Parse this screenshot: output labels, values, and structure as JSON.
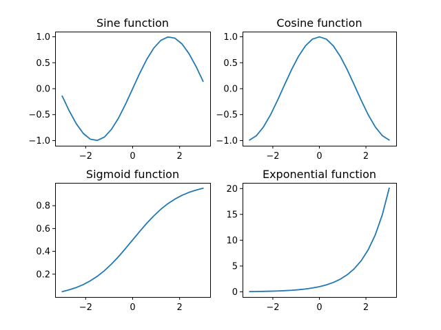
{
  "chart_data": [
    {
      "type": "line",
      "title": "Sine function",
      "xlabel": "",
      "ylabel": "",
      "xlim": [
        -3.3,
        3.3
      ],
      "ylim": [
        -1.1,
        1.1
      ],
      "xticks": [
        -2,
        0,
        2
      ],
      "xtick_labels": [
        "−2",
        "0",
        "2"
      ],
      "yticks": [
        -1.0,
        -0.5,
        0.0,
        0.5,
        1.0
      ],
      "ytick_labels": [
        "−1.0",
        "−0.5",
        "0.0",
        "0.5",
        "1.0"
      ],
      "grid": false,
      "color": "#1f77b4",
      "series": [
        {
          "x": [
            -3.0,
            -2.7,
            -2.4,
            -2.1,
            -1.8,
            -1.5,
            -1.2,
            -0.9,
            -0.6,
            -0.3,
            0.0,
            0.3,
            0.6,
            0.9,
            1.2,
            1.5,
            1.8,
            2.1,
            2.4,
            2.7,
            3.0
          ],
          "y": [
            -0.141,
            -0.427,
            -0.675,
            -0.863,
            -0.974,
            -0.997,
            -0.932,
            -0.783,
            -0.565,
            -0.296,
            0.0,
            0.296,
            0.565,
            0.783,
            0.932,
            0.997,
            0.974,
            0.863,
            0.675,
            0.427,
            0.141
          ]
        }
      ]
    },
    {
      "type": "line",
      "title": "Cosine function",
      "xlabel": "",
      "ylabel": "",
      "xlim": [
        -3.3,
        3.3
      ],
      "ylim": [
        -1.1,
        1.1
      ],
      "xticks": [
        -2,
        0,
        2
      ],
      "xtick_labels": [
        "−2",
        "0",
        "2"
      ],
      "yticks": [
        -1.0,
        -0.5,
        0.0,
        0.5,
        1.0
      ],
      "ytick_labels": [
        "−1.0",
        "−0.5",
        "0.0",
        "0.5",
        "1.0"
      ],
      "grid": false,
      "color": "#1f77b4",
      "series": [
        {
          "x": [
            -3.0,
            -2.7,
            -2.4,
            -2.1,
            -1.8,
            -1.5,
            -1.2,
            -0.9,
            -0.6,
            -0.3,
            0.0,
            0.3,
            0.6,
            0.9,
            1.2,
            1.5,
            1.8,
            2.1,
            2.4,
            2.7,
            3.0
          ],
          "y": [
            -0.99,
            -0.904,
            -0.737,
            -0.505,
            -0.227,
            0.071,
            0.362,
            0.622,
            0.825,
            0.955,
            1.0,
            0.955,
            0.825,
            0.622,
            0.362,
            0.071,
            -0.227,
            -0.505,
            -0.737,
            -0.904,
            -0.99
          ]
        }
      ]
    },
    {
      "type": "line",
      "title": "Sigmoid function",
      "xlabel": "",
      "ylabel": "",
      "xlim": [
        -3.3,
        3.3
      ],
      "ylim": [
        0.0,
        1.0
      ],
      "xticks": [
        -2,
        0,
        2
      ],
      "xtick_labels": [
        "−2",
        "0",
        "2"
      ],
      "yticks": [
        0.2,
        0.4,
        0.6,
        0.8
      ],
      "ytick_labels": [
        "0.2",
        "0.4",
        "0.6",
        "0.8"
      ],
      "grid": false,
      "color": "#1f77b4",
      "series": [
        {
          "x": [
            -3.0,
            -2.7,
            -2.4,
            -2.1,
            -1.8,
            -1.5,
            -1.2,
            -0.9,
            -0.6,
            -0.3,
            0.0,
            0.3,
            0.6,
            0.9,
            1.2,
            1.5,
            1.8,
            2.1,
            2.4,
            2.7,
            3.0
          ],
          "y": [
            0.047,
            0.063,
            0.083,
            0.109,
            0.142,
            0.182,
            0.231,
            0.289,
            0.354,
            0.426,
            0.5,
            0.574,
            0.646,
            0.711,
            0.769,
            0.818,
            0.858,
            0.891,
            0.917,
            0.937,
            0.953
          ]
        }
      ]
    },
    {
      "type": "line",
      "title": "Exponential function",
      "xlabel": "",
      "ylabel": "",
      "xlim": [
        -3.3,
        3.3
      ],
      "ylim": [
        -1.0,
        21.1
      ],
      "xticks": [
        -2,
        0,
        2
      ],
      "xtick_labels": [
        "−2",
        "0",
        "2"
      ],
      "yticks": [
        0,
        5,
        10,
        15,
        20
      ],
      "ytick_labels": [
        "0",
        "5",
        "10",
        "15",
        "20"
      ],
      "grid": false,
      "color": "#1f77b4",
      "series": [
        {
          "x": [
            -3.0,
            -2.7,
            -2.4,
            -2.1,
            -1.8,
            -1.5,
            -1.2,
            -0.9,
            -0.6,
            -0.3,
            0.0,
            0.3,
            0.6,
            0.9,
            1.2,
            1.5,
            1.8,
            2.1,
            2.4,
            2.7,
            3.0
          ],
          "y": [
            0.05,
            0.067,
            0.091,
            0.122,
            0.165,
            0.223,
            0.301,
            0.407,
            0.549,
            0.741,
            1.0,
            1.35,
            1.822,
            2.46,
            3.32,
            4.482,
            6.05,
            8.166,
            11.023,
            14.88,
            20.086
          ]
        }
      ]
    }
  ]
}
